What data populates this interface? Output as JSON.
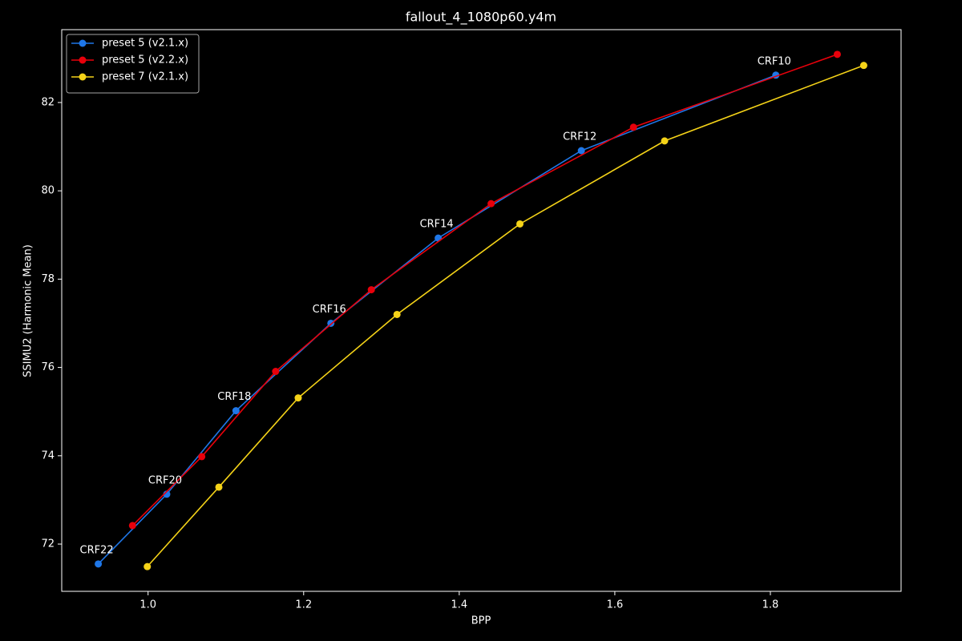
{
  "chart_data": {
    "type": "line",
    "title": "fallout_4_1080p60.y4m",
    "x_label": "BPP",
    "y_label": "SSIMU2 (Harmonic Mean)",
    "xlim": [
      0.889,
      1.968
    ],
    "ylim": [
      70.93,
      83.65
    ],
    "xticks": [
      {
        "value": 1.0,
        "label": "1.0"
      },
      1.2,
      1.4,
      1.6,
      1.8
    ],
    "yticks": [
      72,
      74,
      76,
      78,
      80,
      82
    ],
    "legend": "upper left",
    "series": [
      {
        "name": "preset 5 (v2.1.x)",
        "color": "#1f77e8",
        "x": [
          0.936,
          1.024,
          1.113,
          1.235,
          1.373,
          1.557,
          1.807
        ],
        "values": [
          71.55,
          73.13,
          75.02,
          77.0,
          78.93,
          80.91,
          82.62
        ]
      },
      {
        "name": "preset 5 (v2.2.x)",
        "color": "#e8000b",
        "x": [
          0.98,
          1.069,
          1.164,
          1.287,
          1.441,
          1.624,
          1.886
        ],
        "values": [
          72.42,
          73.98,
          75.91,
          77.76,
          79.71,
          81.44,
          83.09
        ]
      },
      {
        "name": "preset 7 (v2.1.x)",
        "color": "#f5d318",
        "x": [
          0.999,
          1.091,
          1.193,
          1.32,
          1.478,
          1.664,
          1.92
        ],
        "values": [
          71.49,
          73.29,
          75.31,
          77.2,
          79.25,
          81.13,
          82.84
        ]
      }
    ],
    "annotations": [
      "CRF22",
      "CRF20",
      "CRF18",
      "CRF16",
      "CRF14",
      "CRF12",
      "CRF10"
    ]
  }
}
